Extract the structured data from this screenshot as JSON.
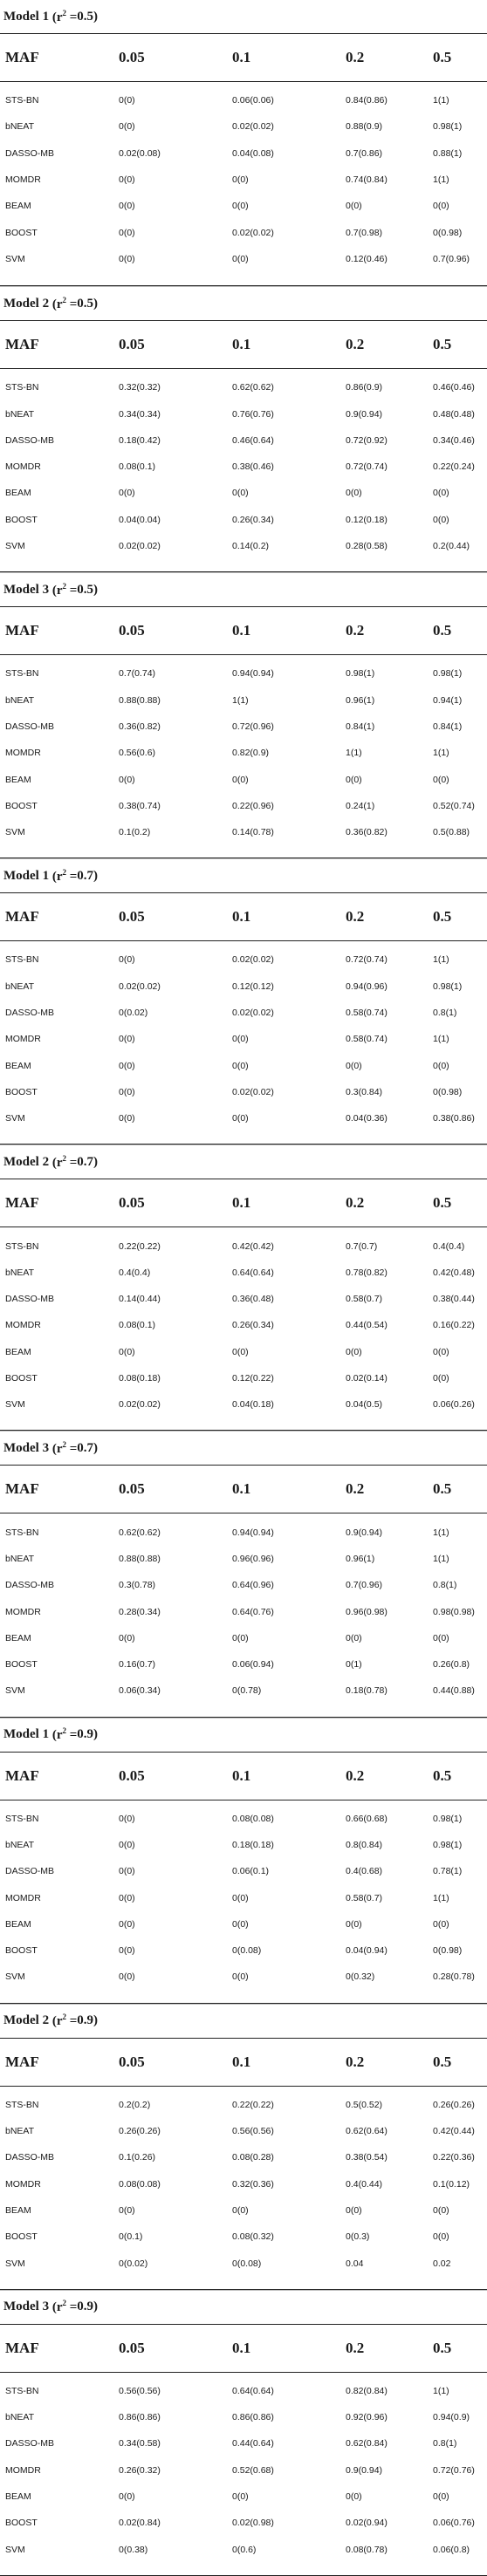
{
  "header_labels": [
    "MAF",
    "0.05",
    "0.1",
    "0.2",
    "0.5"
  ],
  "sections": [
    {
      "model": "Model 1",
      "r2": "0.5",
      "rows": [
        [
          "STS-BN",
          "0(0)",
          "0.06(0.06)",
          "0.84(0.86)",
          "1(1)"
        ],
        [
          "bNEAT",
          "0(0)",
          "0.02(0.02)",
          "0.88(0.9)",
          "0.98(1)"
        ],
        [
          "DASSO-MB",
          "0.02(0.08)",
          "0.04(0.08)",
          "0.7(0.86)",
          "0.88(1)"
        ],
        [
          "MOMDR",
          "0(0)",
          "0(0)",
          "0.74(0.84)",
          "1(1)"
        ],
        [
          "BEAM",
          "0(0)",
          "0(0)",
          "0(0)",
          "0(0)"
        ],
        [
          "BOOST",
          "0(0)",
          "0.02(0.02)",
          "0.7(0.98)",
          "0(0.98)"
        ],
        [
          "SVM",
          "0(0)",
          "0(0)",
          "0.12(0.46)",
          "0.7(0.96)"
        ]
      ]
    },
    {
      "model": "Model 2",
      "r2": "0.5",
      "rows": [
        [
          "STS-BN",
          "0.32(0.32)",
          "0.62(0.62)",
          "0.86(0.9)",
          "0.46(0.46)"
        ],
        [
          "bNEAT",
          "0.34(0.34)",
          "0.76(0.76)",
          "0.9(0.94)",
          "0.48(0.48)"
        ],
        [
          "DASSO-MB",
          "0.18(0.42)",
          "0.46(0.64)",
          "0.72(0.92)",
          "0.34(0.46)"
        ],
        [
          "MOMDR",
          "0.08(0.1)",
          "0.38(0.46)",
          "0.72(0.74)",
          "0.22(0.24)"
        ],
        [
          "BEAM",
          "0(0)",
          "0(0)",
          "0(0)",
          "0(0)"
        ],
        [
          "BOOST",
          "0.04(0.04)",
          "0.26(0.34)",
          "0.12(0.18)",
          "0(0)"
        ],
        [
          "SVM",
          "0.02(0.02)",
          "0.14(0.2)",
          "0.28(0.58)",
          "0.2(0.44)"
        ]
      ]
    },
    {
      "model": "Model 3",
      "r2": "0.5",
      "rows": [
        [
          "STS-BN",
          "0.7(0.74)",
          "0.94(0.94)",
          "0.98(1)",
          "0.98(1)"
        ],
        [
          "bNEAT",
          "0.88(0.88)",
          "1(1)",
          "0.96(1)",
          "0.94(1)"
        ],
        [
          "DASSO-MB",
          "0.36(0.82)",
          "0.72(0.96)",
          "0.84(1)",
          "0.84(1)"
        ],
        [
          "MOMDR",
          "0.56(0.6)",
          "0.82(0.9)",
          "1(1)",
          "1(1)"
        ],
        [
          "BEAM",
          "0(0)",
          "0(0)",
          "0(0)",
          "0(0)"
        ],
        [
          "BOOST",
          "0.38(0.74)",
          "0.22(0.96)",
          "0.24(1)",
          "0.52(0.74)"
        ],
        [
          "SVM",
          "0.1(0.2)",
          "0.14(0.78)",
          "0.36(0.82)",
          "0.5(0.88)"
        ]
      ]
    },
    {
      "model": "Model 1",
      "r2": "0.7",
      "rows": [
        [
          "STS-BN",
          "0(0)",
          "0.02(0.02)",
          "0.72(0.74)",
          "1(1)"
        ],
        [
          "bNEAT",
          "0.02(0.02)",
          "0.12(0.12)",
          "0.94(0.96)",
          "0.98(1)"
        ],
        [
          "DASSO-MB",
          "0(0.02)",
          "0.02(0.02)",
          "0.58(0.74)",
          "0.8(1)"
        ],
        [
          "MOMDR",
          "0(0)",
          "0(0)",
          "0.58(0.74)",
          "1(1)"
        ],
        [
          "BEAM",
          "0(0)",
          "0(0)",
          "0(0)",
          "0(0)"
        ],
        [
          "BOOST",
          "0(0)",
          "0.02(0.02)",
          "0.3(0.84)",
          "0(0.98)"
        ],
        [
          "SVM",
          "0(0)",
          "0(0)",
          "0.04(0.36)",
          "0.38(0.86)"
        ]
      ]
    },
    {
      "model": "Model 2",
      "r2": "0.7",
      "rows": [
        [
          "STS-BN",
          "0.22(0.22)",
          "0.42(0.42)",
          "0.7(0.7)",
          "0.4(0.4)"
        ],
        [
          "bNEAT",
          "0.4(0.4)",
          "0.64(0.64)",
          "0.78(0.82)",
          "0.42(0.48)"
        ],
        [
          "DASSO-MB",
          "0.14(0.44)",
          "0.36(0.48)",
          "0.58(0.7)",
          "0.38(0.44)"
        ],
        [
          "MOMDR",
          "0.08(0.1)",
          "0.26(0.34)",
          "0.44(0.54)",
          "0.16(0.22)"
        ],
        [
          "BEAM",
          "0(0)",
          "0(0)",
          "0(0)",
          "0(0)"
        ],
        [
          "BOOST",
          "0.08(0.18)",
          "0.12(0.22)",
          "0.02(0.14)",
          "0(0)"
        ],
        [
          "SVM",
          "0.02(0.02)",
          "0.04(0.18)",
          "0.04(0.5)",
          "0.06(0.26)"
        ]
      ]
    },
    {
      "model": "Model 3",
      "r2": "0.7",
      "rows": [
        [
          "STS-BN",
          "0.62(0.62)",
          "0.94(0.94)",
          "0.9(0.94)",
          "1(1)"
        ],
        [
          "bNEAT",
          "0.88(0.88)",
          "0.96(0.96)",
          "0.96(1)",
          "1(1)"
        ],
        [
          "DASSO-MB",
          "0.3(0.78)",
          "0.64(0.96)",
          "0.7(0.96)",
          "0.8(1)"
        ],
        [
          "MOMDR",
          "0.28(0.34)",
          "0.64(0.76)",
          "0.96(0.98)",
          "0.98(0.98)"
        ],
        [
          "BEAM",
          "0(0)",
          "0(0)",
          "0(0)",
          "0(0)"
        ],
        [
          "BOOST",
          "0.16(0.7)",
          "0.06(0.94)",
          "0(1)",
          "0.26(0.8)"
        ],
        [
          "SVM",
          "0.06(0.34)",
          "0(0.78)",
          "0.18(0.78)",
          "0.44(0.88)"
        ]
      ]
    },
    {
      "model": "Model 1",
      "r2": "0.9",
      "rows": [
        [
          "STS-BN",
          "0(0)",
          "0.08(0.08)",
          "0.66(0.68)",
          "0.98(1)"
        ],
        [
          "bNEAT",
          "0(0)",
          "0.18(0.18)",
          "0.8(0.84)",
          "0.98(1)"
        ],
        [
          "DASSO-MB",
          "0(0)",
          "0.06(0.1)",
          "0.4(0.68)",
          "0.78(1)"
        ],
        [
          "MOMDR",
          "0(0)",
          "0(0)",
          "0.58(0.7)",
          "1(1)"
        ],
        [
          "BEAM",
          "0(0)",
          "0(0)",
          "0(0)",
          "0(0)"
        ],
        [
          "BOOST",
          "0(0)",
          "0(0.08)",
          "0.04(0.94)",
          "0(0.98)"
        ],
        [
          "SVM",
          "0(0)",
          "0(0)",
          "0(0.32)",
          "0.28(0.78)"
        ]
      ]
    },
    {
      "model": "Model 2",
      "r2": "0.9",
      "rows": [
        [
          "STS-BN",
          "0.2(0.2)",
          "0.22(0.22)",
          "0.5(0.52)",
          "0.26(0.26)"
        ],
        [
          "bNEAT",
          "0.26(0.26)",
          "0.56(0.56)",
          "0.62(0.64)",
          "0.42(0.44)"
        ],
        [
          "DASSO-MB",
          "0.1(0.26)",
          "0.08(0.28)",
          "0.38(0.54)",
          "0.22(0.36)"
        ],
        [
          "MOMDR",
          "0.08(0.08)",
          "0.32(0.36)",
          "0.4(0.44)",
          "0.1(0.12)"
        ],
        [
          "BEAM",
          "0(0)",
          "0(0)",
          "0(0)",
          "0(0)"
        ],
        [
          "BOOST",
          "0(0.1)",
          "0.08(0.32)",
          "0(0.3)",
          "0(0)"
        ],
        [
          "SVM",
          "0(0.02)",
          "0(0.08)",
          "0.04",
          "0.02"
        ]
      ]
    },
    {
      "model": "Model 3",
      "r2": "0.9",
      "rows": [
        [
          "STS-BN",
          "0.56(0.56)",
          "0.64(0.64)",
          "0.82(0.84)",
          "1(1)"
        ],
        [
          "bNEAT",
          "0.86(0.86)",
          "0.86(0.86)",
          "0.92(0.96)",
          "0.94(0.9)"
        ],
        [
          "DASSO-MB",
          "0.34(0.58)",
          "0.44(0.64)",
          "0.62(0.84)",
          "0.8(1)"
        ],
        [
          "MOMDR",
          "0.26(0.32)",
          "0.52(0.68)",
          "0.9(0.94)",
          "0.72(0.76)"
        ],
        [
          "BEAM",
          "0(0)",
          "0(0)",
          "0(0)",
          "0(0)"
        ],
        [
          "BOOST",
          "0.02(0.84)",
          "0.02(0.98)",
          "0.02(0.94)",
          "0.06(0.76)"
        ],
        [
          "SVM",
          "0(0.38)",
          "0(0.6)",
          "0.08(0.78)",
          "0.06(0.8)"
        ]
      ]
    }
  ]
}
